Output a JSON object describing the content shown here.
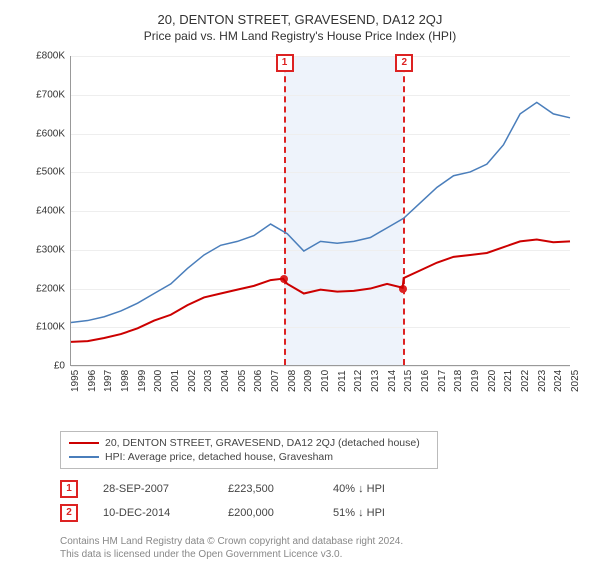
{
  "title": "20, DENTON STREET, GRAVESEND, DA12 2QJ",
  "subtitle": "Price paid vs. HM Land Registry's House Price Index (HPI)",
  "chart": {
    "type": "line",
    "ylim": [
      0,
      800000
    ],
    "ytick_step": 100000,
    "ytick_format": "£{}K",
    "xlim": [
      1995,
      2025
    ],
    "xticks": [
      1995,
      1996,
      1997,
      1998,
      1999,
      2000,
      2001,
      2002,
      2003,
      2004,
      2005,
      2006,
      2007,
      2008,
      2009,
      2010,
      2011,
      2012,
      2013,
      2014,
      2015,
      2016,
      2017,
      2018,
      2019,
      2020,
      2021,
      2022,
      2023,
      2024,
      2025
    ],
    "shade_band": {
      "start": 2007.75,
      "end": 2014.94
    },
    "background_color": "#ffffff",
    "grid_color": "#eeeeee",
    "series": [
      {
        "name": "property",
        "label": "20, DENTON STREET, GRAVESEND, DA12 2QJ (detached house)",
        "color": "#cc0000",
        "line_width": 2,
        "data": [
          [
            1995,
            60000
          ],
          [
            1996,
            62000
          ],
          [
            1997,
            70000
          ],
          [
            1998,
            80000
          ],
          [
            1999,
            95000
          ],
          [
            2000,
            115000
          ],
          [
            2001,
            130000
          ],
          [
            2002,
            155000
          ],
          [
            2003,
            175000
          ],
          [
            2004,
            185000
          ],
          [
            2005,
            195000
          ],
          [
            2006,
            205000
          ],
          [
            2007,
            220000
          ],
          [
            2007.75,
            223500
          ],
          [
            2008,
            210000
          ],
          [
            2009,
            185000
          ],
          [
            2010,
            195000
          ],
          [
            2011,
            190000
          ],
          [
            2012,
            192000
          ],
          [
            2013,
            198000
          ],
          [
            2014,
            210000
          ],
          [
            2014.94,
            200000
          ],
          [
            2015,
            225000
          ],
          [
            2016,
            245000
          ],
          [
            2017,
            265000
          ],
          [
            2018,
            280000
          ],
          [
            2019,
            285000
          ],
          [
            2020,
            290000
          ],
          [
            2021,
            305000
          ],
          [
            2022,
            320000
          ],
          [
            2023,
            325000
          ],
          [
            2024,
            318000
          ],
          [
            2025,
            320000
          ]
        ]
      },
      {
        "name": "hpi",
        "label": "HPI: Average price, detached house, Gravesham",
        "color": "#4a7ebb",
        "line_width": 1.5,
        "data": [
          [
            1995,
            110000
          ],
          [
            1996,
            115000
          ],
          [
            1997,
            125000
          ],
          [
            1998,
            140000
          ],
          [
            1999,
            160000
          ],
          [
            2000,
            185000
          ],
          [
            2001,
            210000
          ],
          [
            2002,
            250000
          ],
          [
            2003,
            285000
          ],
          [
            2004,
            310000
          ],
          [
            2005,
            320000
          ],
          [
            2006,
            335000
          ],
          [
            2007,
            365000
          ],
          [
            2008,
            340000
          ],
          [
            2009,
            295000
          ],
          [
            2010,
            320000
          ],
          [
            2011,
            315000
          ],
          [
            2012,
            320000
          ],
          [
            2013,
            330000
          ],
          [
            2014,
            355000
          ],
          [
            2015,
            380000
          ],
          [
            2016,
            420000
          ],
          [
            2017,
            460000
          ],
          [
            2018,
            490000
          ],
          [
            2019,
            500000
          ],
          [
            2020,
            520000
          ],
          [
            2021,
            570000
          ],
          [
            2022,
            650000
          ],
          [
            2023,
            680000
          ],
          [
            2024,
            650000
          ],
          [
            2025,
            640000
          ]
        ]
      }
    ],
    "markers": [
      {
        "n": 1,
        "label": "1",
        "x": 2007.75,
        "y": 223500
      },
      {
        "n": 2,
        "label": "2",
        "x": 2014.94,
        "y": 200000
      }
    ]
  },
  "legend": {
    "items": [
      {
        "color": "#cc0000",
        "label": "20, DENTON STREET, GRAVESEND, DA12 2QJ (detached house)"
      },
      {
        "color": "#4a7ebb",
        "label": "HPI: Average price, detached house, Gravesham"
      }
    ]
  },
  "sales": [
    {
      "n": "1",
      "date": "28-SEP-2007",
      "price": "£223,500",
      "diff": "40% ↓ HPI"
    },
    {
      "n": "2",
      "date": "10-DEC-2014",
      "price": "£200,000",
      "diff": "51% ↓ HPI"
    }
  ],
  "footer": {
    "line1": "Contains HM Land Registry data © Crown copyright and database right 2024.",
    "line2": "This data is licensed under the Open Government Licence v3.0."
  }
}
